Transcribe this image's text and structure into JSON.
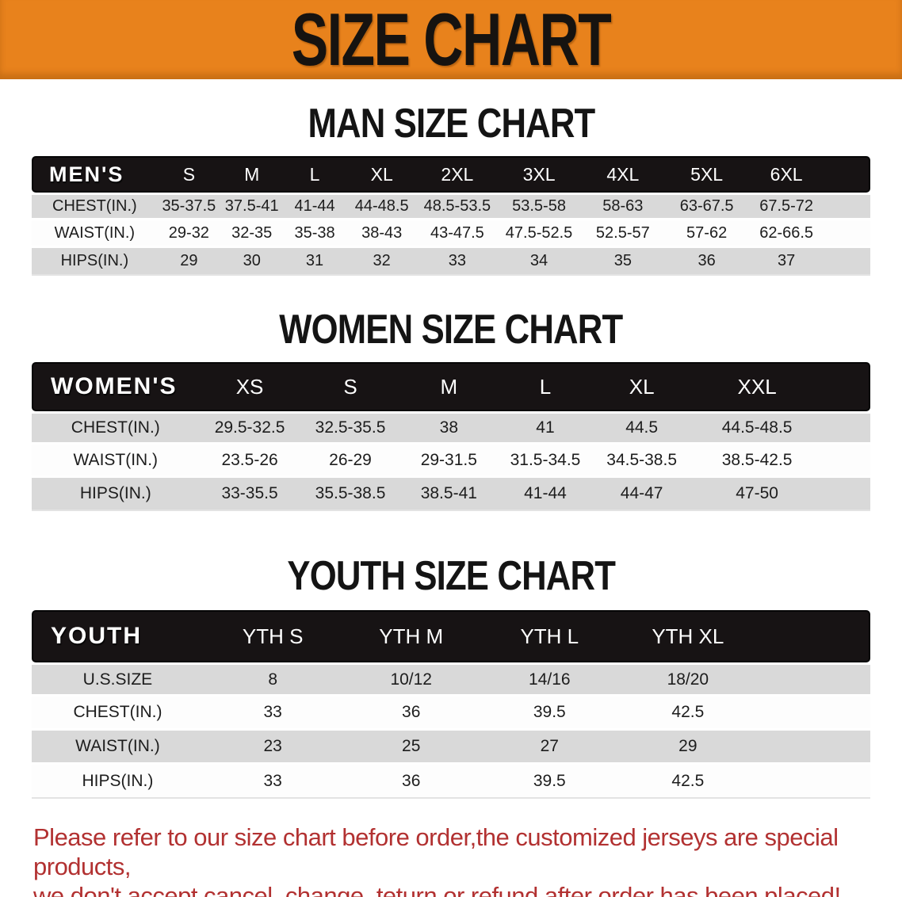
{
  "banner": {
    "title": "SIZE CHART",
    "bg_color": "#E8821C",
    "text_color": "#161310"
  },
  "sections": [
    {
      "heading": "MAN SIZE CHART",
      "table": {
        "header_label": "MEN'S",
        "columns": [
          "S",
          "M",
          "L",
          "XL",
          "2XL",
          "3XL",
          "4XL",
          "5XL",
          "6XL"
        ],
        "rows": [
          {
            "label": "CHEST(IN.)",
            "values": [
              "35-37.5",
              "37.5-41",
              "41-44",
              "44-48.5",
              "48.5-53.5",
              "53.5-58",
              "58-63",
              "63-67.5",
              "67.5-72"
            ]
          },
          {
            "label": "WAIST(IN.)",
            "values": [
              "29-32",
              "32-35",
              "35-38",
              "38-43",
              "43-47.5",
              "47.5-52.5",
              "52.5-57",
              "57-62",
              "62-66.5"
            ]
          },
          {
            "label": "HIPS(IN.)",
            "values": [
              "29",
              "30",
              "31",
              "32",
              "33",
              "34",
              "35",
              "36",
              "37"
            ]
          }
        ]
      }
    },
    {
      "heading": "WOMEN SIZE CHART",
      "table": {
        "header_label": "WOMEN'S",
        "columns": [
          "XS",
          "S",
          "M",
          "L",
          "XL",
          "XXL"
        ],
        "rows": [
          {
            "label": "CHEST(IN.)",
            "values": [
              "29.5-32.5",
              "32.5-35.5",
              "38",
              "41",
              "44.5",
              "44.5-48.5"
            ]
          },
          {
            "label": "WAIST(IN.)",
            "values": [
              "23.5-26",
              "26-29",
              "29-31.5",
              "31.5-34.5",
              "34.5-38.5",
              "38.5-42.5"
            ]
          },
          {
            "label": "HIPS(IN.)",
            "values": [
              "33-35.5",
              "35.5-38.5",
              "38.5-41",
              "41-44",
              "44-47",
              "47-50"
            ]
          }
        ]
      }
    },
    {
      "heading": "YOUTH SIZE CHART",
      "table": {
        "header_label": "YOUTH",
        "columns": [
          "YTH S",
          "YTH M",
          "YTH L",
          "YTH XL"
        ],
        "rows": [
          {
            "label": "U.S.SIZE",
            "values": [
              "8",
              "10/12",
              "14/16",
              "18/20"
            ]
          },
          {
            "label": "CHEST(IN.)",
            "values": [
              "33",
              "36",
              "39.5",
              "42.5"
            ]
          },
          {
            "label": "WAIST(IN.)",
            "values": [
              "23",
              "25",
              "27",
              "29"
            ]
          },
          {
            "label": "HIPS(IN.)",
            "values": [
              "33",
              "36",
              "39.5",
              "42.5"
            ]
          }
        ]
      }
    }
  ],
  "disclaimer": {
    "line1": "Please refer to our size chart before order,the customized jerseys are special products,",
    "line2": "we don't accept cancel, change, teturn or refund after order has been placed!",
    "color": "#B23131"
  },
  "table_row_colors": {
    "stripe_gray": "#d9d9d9",
    "header_black": "#171314"
  }
}
